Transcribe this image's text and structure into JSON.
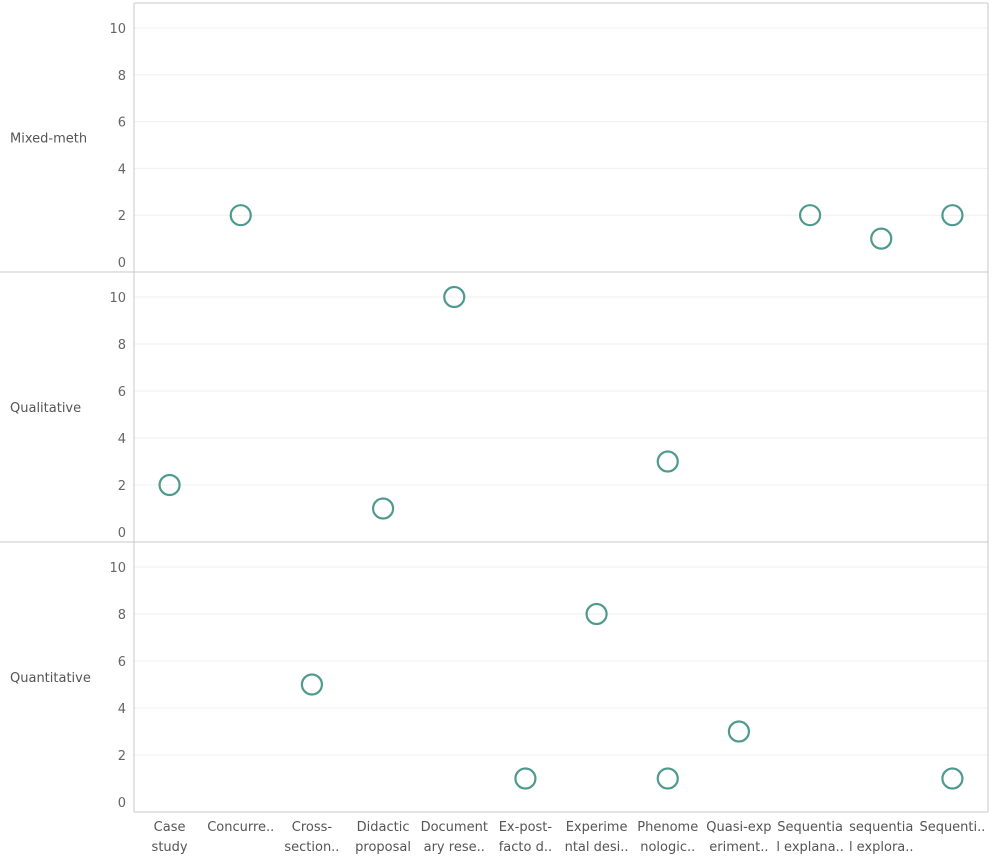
{
  "chart_data": {
    "type": "scatter",
    "mark": "circle",
    "mark_color": "#4e9a8e",
    "categories": [
      [
        "Case",
        "study"
      ],
      [
        "Concurre.."
      ],
      [
        "Cross-",
        "section.."
      ],
      [
        "Didactic",
        "proposal"
      ],
      [
        "Document",
        "ary rese.."
      ],
      [
        "Ex-post-",
        "facto d.."
      ],
      [
        "Experime",
        "ntal desi.."
      ],
      [
        "Phenome",
        "nologic.."
      ],
      [
        "Quasi-exp",
        "eriment.."
      ],
      [
        "Sequentia",
        "l explana.."
      ],
      [
        "sequentia",
        "l explora.."
      ],
      [
        "Sequenti.."
      ]
    ],
    "yticks": [
      "0",
      "2",
      "4",
      "6",
      "8",
      "10"
    ],
    "ylim": [
      0,
      10
    ],
    "grid": true,
    "rows": [
      {
        "name": "Mixed-meth",
        "points": [
          {
            "c": 1,
            "y": 2
          },
          {
            "c": 9,
            "y": 2
          },
          {
            "c": 10,
            "y": 1
          },
          {
            "c": 11,
            "y": 2
          }
        ]
      },
      {
        "name": "Qualitative",
        "points": [
          {
            "c": 0,
            "y": 2
          },
          {
            "c": 3,
            "y": 1
          },
          {
            "c": 4,
            "y": 10
          },
          {
            "c": 7,
            "y": 3
          }
        ]
      },
      {
        "name": "Quantitative",
        "points": [
          {
            "c": 2,
            "y": 5
          },
          {
            "c": 5,
            "y": 1
          },
          {
            "c": 6,
            "y": 8
          },
          {
            "c": 7,
            "y": 1
          },
          {
            "c": 8,
            "y": 3
          },
          {
            "c": 11,
            "y": 1
          }
        ]
      }
    ]
  }
}
